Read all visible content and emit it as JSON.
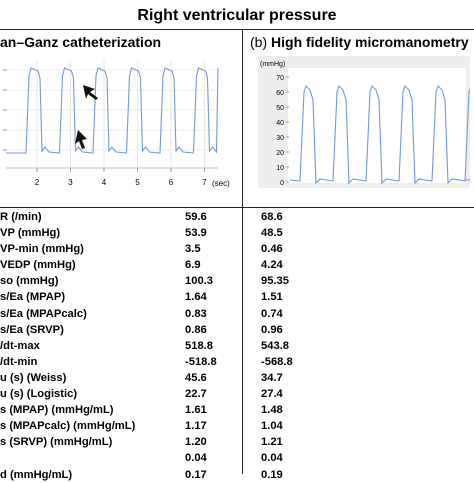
{
  "title": "Right ventricular pressure",
  "panel_a": {
    "title": "an–Ganz catheterization",
    "x_ticks": [
      "2",
      "3",
      "4",
      "5",
      "6",
      "7"
    ],
    "x_unit": "(sec)",
    "trace_color": "#6f9bd6"
  },
  "panel_b": {
    "letter": "(b)",
    "title": "High fidelity micromanometry",
    "y_unit": "(mmHg)",
    "y_ticks": [
      "70",
      "60",
      "50",
      "40",
      "30",
      "20",
      "10",
      "0"
    ],
    "trace_color": "#6f9bd6"
  },
  "table": {
    "rows": [
      {
        "label": "R (/min)",
        "a": "59.6",
        "b": "68.6"
      },
      {
        "label": "VP (mmHg)",
        "a": "53.9",
        "b": "48.5"
      },
      {
        "label": "VP-min (mmHg)",
        "a": "3.5",
        "b": "0.46"
      },
      {
        "label": "VEDP (mmHg)",
        "a": "6.9",
        "b": "4.24"
      },
      {
        "label": "so (mmHg)",
        "a": "100.3",
        "b": "95.35"
      },
      {
        "label": "s/Ea (MPAP)",
        "a": "1.64",
        "b": "1.51"
      },
      {
        "label": "s/Ea (MPAPcalc)",
        "a": "0.83",
        "b": "0.74"
      },
      {
        "label": "s/Ea (SRVP)",
        "a": "0.86",
        "b": "0.96"
      },
      {
        "label": "/dt-max",
        "a": "518.8",
        "b": "543.8"
      },
      {
        "label": "/dt-min",
        "a": "-518.8",
        "b": "-568.8"
      },
      {
        "label": "u (s) (Weiss)",
        "a": "45.6",
        "b": "34.7"
      },
      {
        "label": "u (s) (Logistic)",
        "a": "22.7",
        "b": "27.4"
      },
      {
        "label": "s (MPAP) (mmHg/mL)",
        "a": "1.61",
        "b": "1.48"
      },
      {
        "label": "s (MPAPcalc) (mmHg/mL)",
        "a": "1.17",
        "b": "1.04"
      },
      {
        "label": "s (SRVP) (mmHg/mL)",
        "a": "1.20",
        "b": "1.21"
      },
      {
        "label": "",
        "a": "0.04",
        "b": "0.04"
      },
      {
        "label": "d (mmHg/mL)",
        "a": "0.17",
        "b": "0.19"
      }
    ]
  }
}
